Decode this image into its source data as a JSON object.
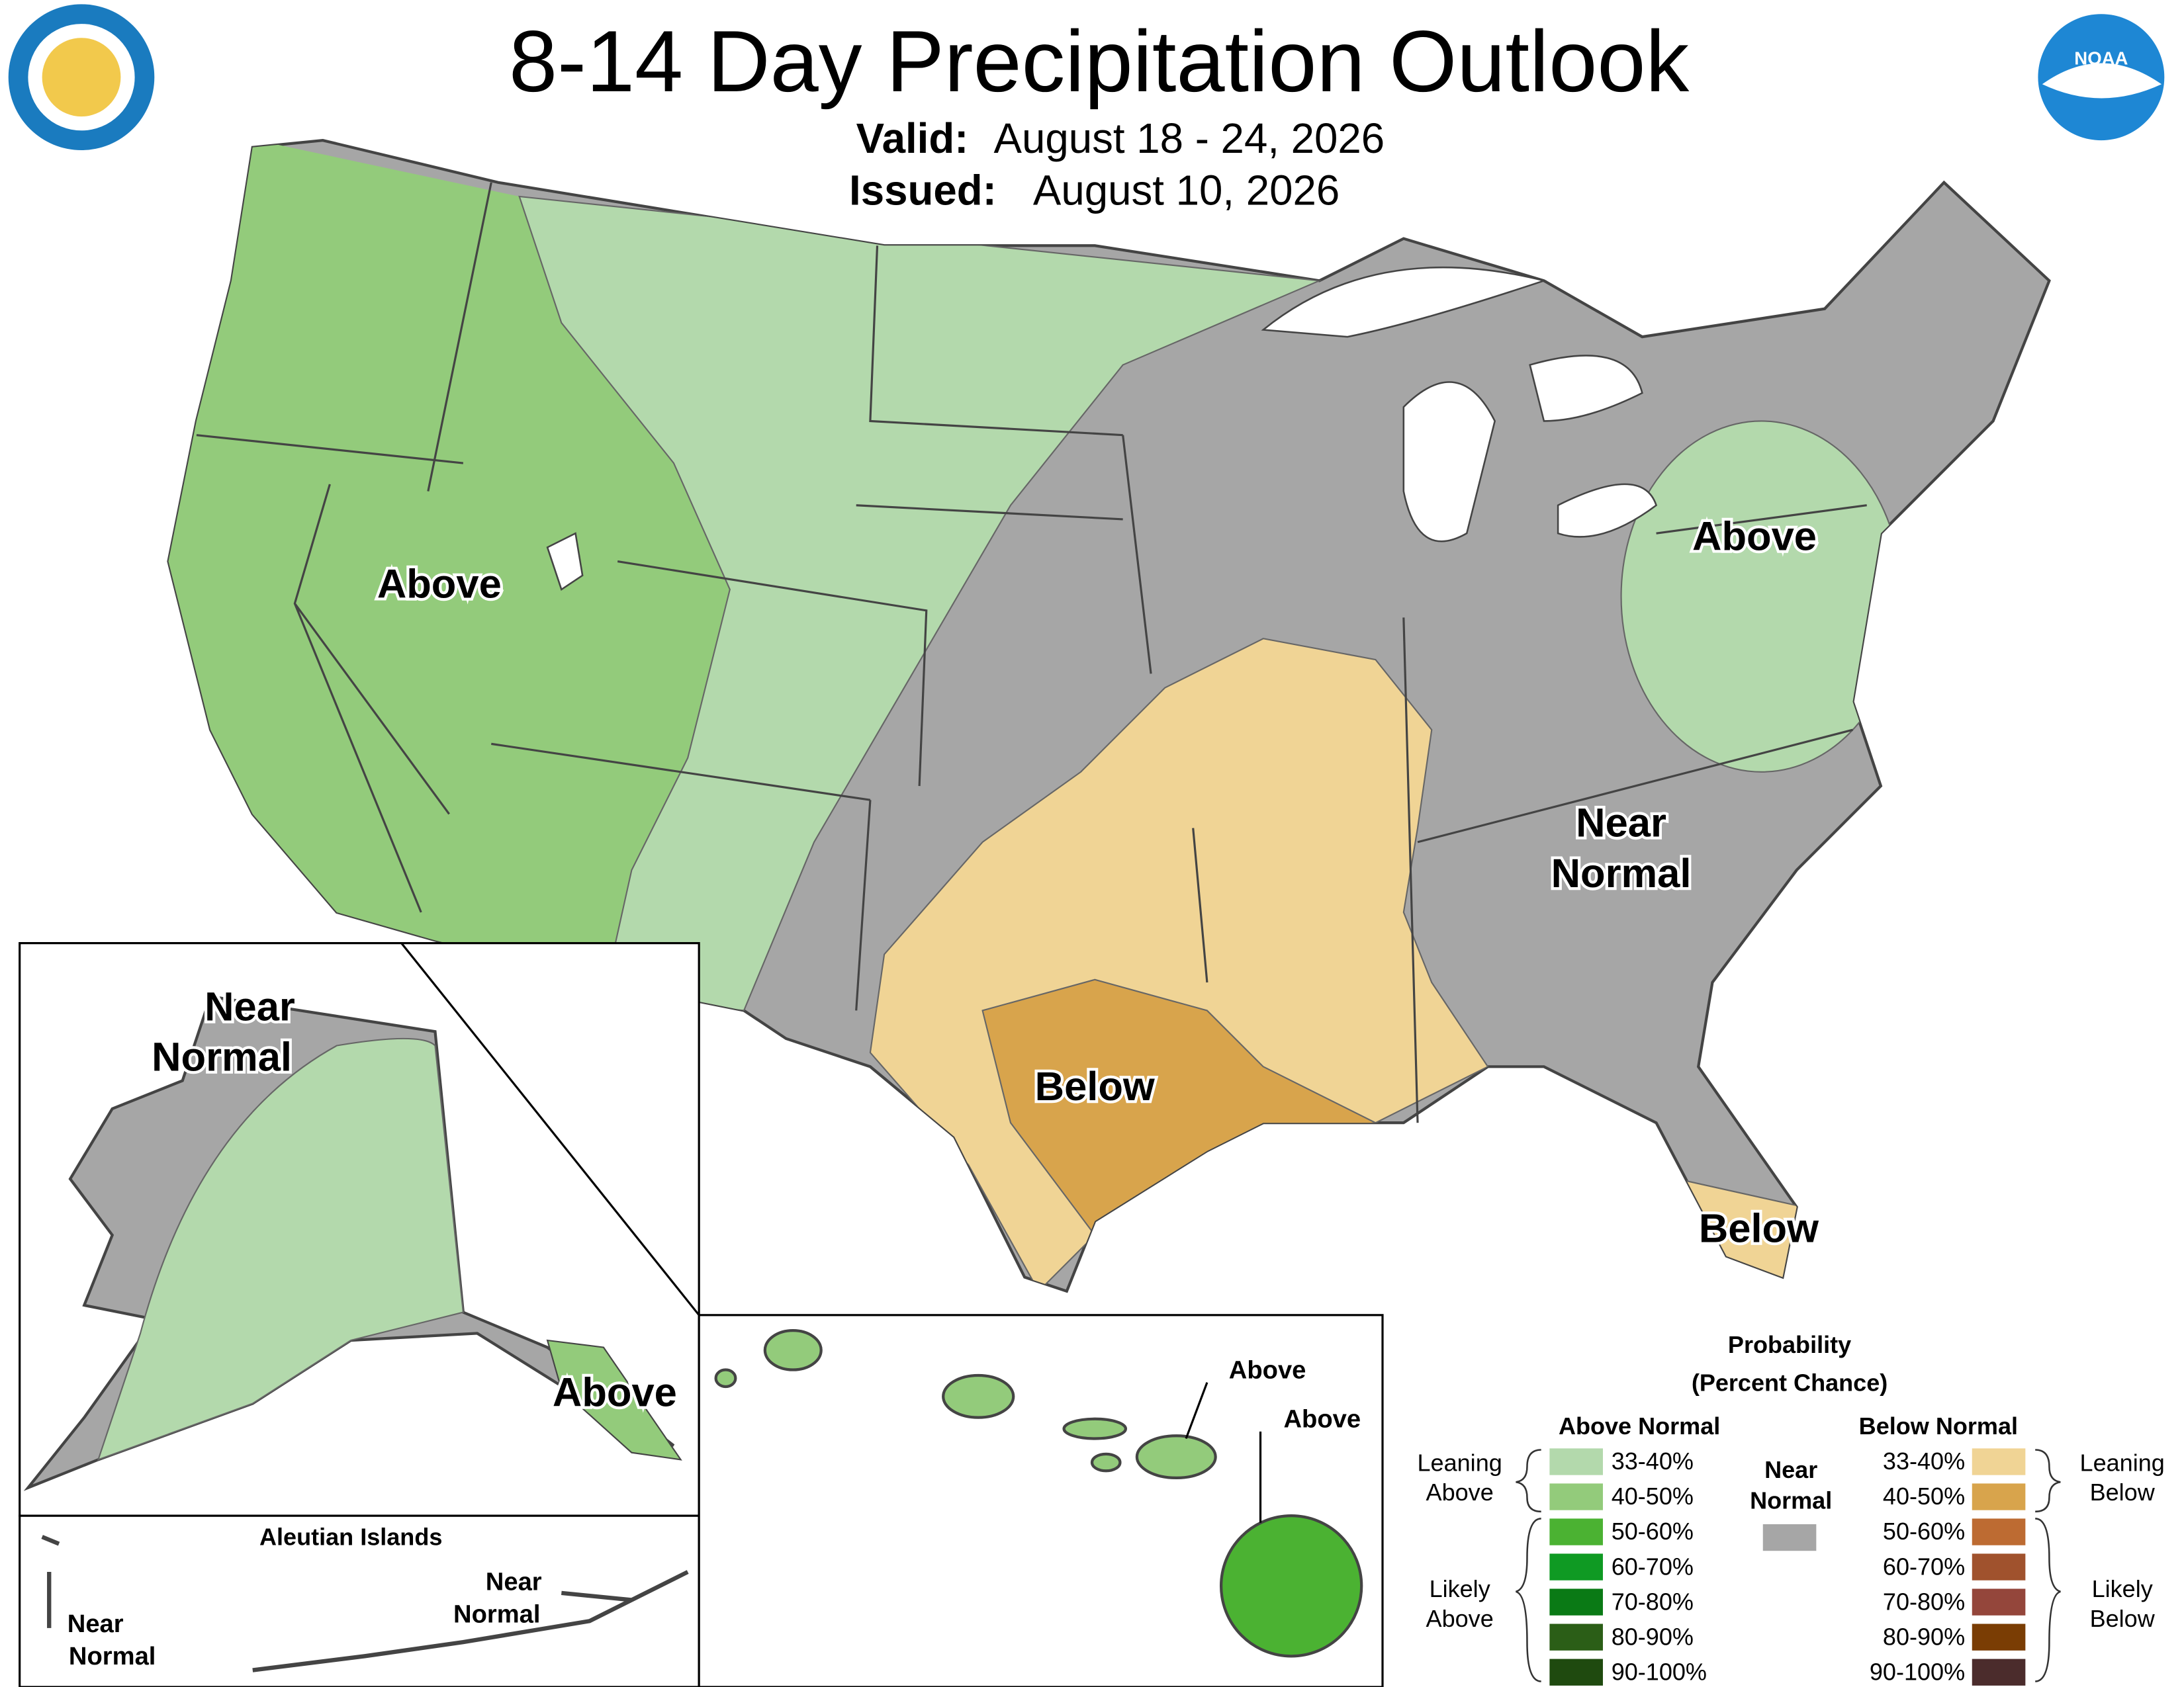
{
  "header": {
    "title": "8-14 Day Precipitation Outlook",
    "valid_label": "Valid:",
    "valid": "August 18 - 24, 2026",
    "issued_label": "Issued:",
    "issued": "August 10, 2026",
    "noaa_logo": "NOAA"
  },
  "conus": {
    "labels": [
      "Above",
      "Above",
      "Near",
      "Normal",
      "Below",
      "Below"
    ]
  },
  "alaska": {
    "labels": [
      "Near",
      "Normal",
      "Above"
    ]
  },
  "aleutians": {
    "title": "Aleutian Islands",
    "labels": [
      "Near",
      "Normal",
      "Near",
      "Normal"
    ]
  },
  "hawaii": {
    "labels": [
      "Above",
      "Above"
    ]
  },
  "legend": {
    "title": "Probability",
    "subtitle": "(Percent Chance)",
    "above_heading": "Above Normal",
    "below_heading": "Below Normal",
    "near_heading": [
      "Near",
      "Normal"
    ],
    "near_color": "#a6a6a6",
    "above_items": [
      {
        "label": "33-40%",
        "color": "#b3d9ac"
      },
      {
        "label": "40-50%",
        "color": "#93cb7b"
      },
      {
        "label": "50-60%",
        "color": "#4bb232"
      },
      {
        "label": "60-70%",
        "color": "#0f9a23"
      },
      {
        "label": "70-80%",
        "color": "#0a7a15"
      },
      {
        "label": "80-90%",
        "color": "#2b5e17"
      },
      {
        "label": "90-100%",
        "color": "#1f4a0f"
      }
    ],
    "below_items": [
      {
        "label": "33-40%",
        "color": "#f0d495"
      },
      {
        "label": "40-50%",
        "color": "#d8a44c"
      },
      {
        "label": "50-60%",
        "color": "#bd6b32"
      },
      {
        "label": "60-70%",
        "color": "#a0522d"
      },
      {
        "label": "70-80%",
        "color": "#94463b"
      },
      {
        "label": "80-90%",
        "color": "#7a3d04"
      },
      {
        "label": "90-100%",
        "color": "#4b2c2c"
      }
    ],
    "leaning_above": [
      "Leaning",
      "Above"
    ],
    "likely_above": [
      "Likely",
      "Above"
    ],
    "leaning_below": [
      "Leaning",
      "Below"
    ],
    "likely_below": [
      "Likely",
      "Below"
    ]
  }
}
